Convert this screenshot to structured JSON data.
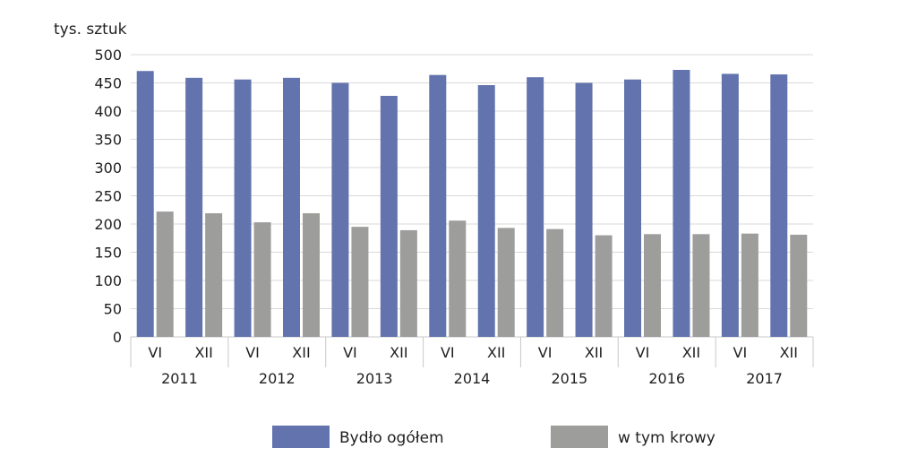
{
  "chart_data": {
    "type": "bar",
    "ylabel": "tys. sztuk",
    "ylim": [
      0,
      500
    ],
    "yticks": [
      0,
      50,
      100,
      150,
      200,
      250,
      300,
      350,
      400,
      450,
      500
    ],
    "grid": true,
    "legend_position": "bottom",
    "groups": [
      "2011",
      "2012",
      "2013",
      "2014",
      "2015",
      "2016",
      "2017"
    ],
    "subcategories": [
      "VI",
      "XII"
    ],
    "categories": [
      "VI",
      "XII",
      "VI",
      "XII",
      "VI",
      "XII",
      "VI",
      "XII",
      "VI",
      "XII",
      "VI",
      "XII",
      "VI",
      "XII"
    ],
    "series": [
      {
        "name": "Bydło ogółem",
        "color": "#6373ad",
        "values": [
          471,
          459,
          456,
          459,
          450,
          427,
          464,
          446,
          460,
          450,
          456,
          473,
          466,
          465
        ]
      },
      {
        "name": "w tym krowy",
        "color": "#9d9d9c",
        "values": [
          222,
          219,
          203,
          219,
          195,
          189,
          206,
          193,
          191,
          180,
          182,
          182,
          183,
          181
        ]
      }
    ]
  }
}
